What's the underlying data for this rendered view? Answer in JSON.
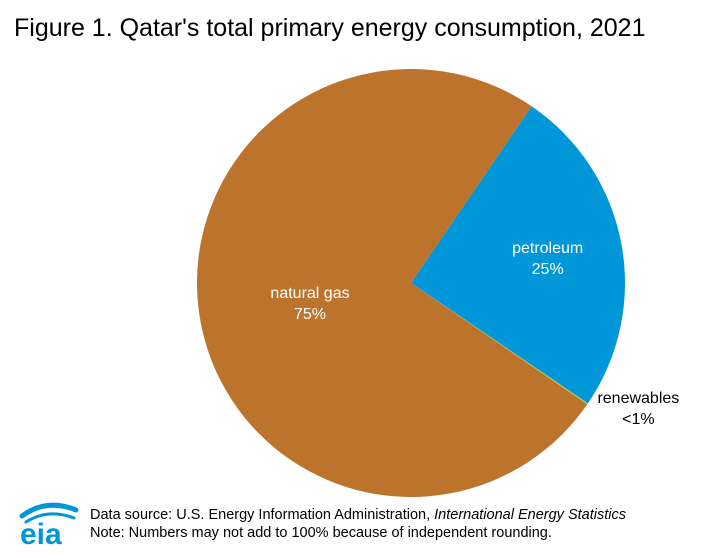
{
  "title": "Figure 1. Qatar's total primary energy consumption, 2021",
  "chart_data": {
    "type": "pie",
    "title": "Figure 1. Qatar's total primary energy consumption, 2021",
    "slices": [
      {
        "name": "natural gas",
        "label": "75%",
        "value": 75,
        "color": "#bc742d",
        "label_color": "#ffffff"
      },
      {
        "name": "petroleum",
        "label": "25%",
        "value": 25,
        "color": "#0096d7",
        "label_color": "#ffffff"
      },
      {
        "name": "renewables",
        "label": "<1%",
        "value": 0.1,
        "color": "#a8c63a",
        "label_color": "#000000"
      }
    ]
  },
  "footer": {
    "source_prefix": "Data source: U.S. Energy Information Administration, ",
    "source_italic": "International Energy Statistics",
    "note": "Note: Numbers may not add to 100% because of independent rounding.",
    "logo_text": "eia"
  },
  "colors": {
    "logo_blue": "#0096d7"
  }
}
